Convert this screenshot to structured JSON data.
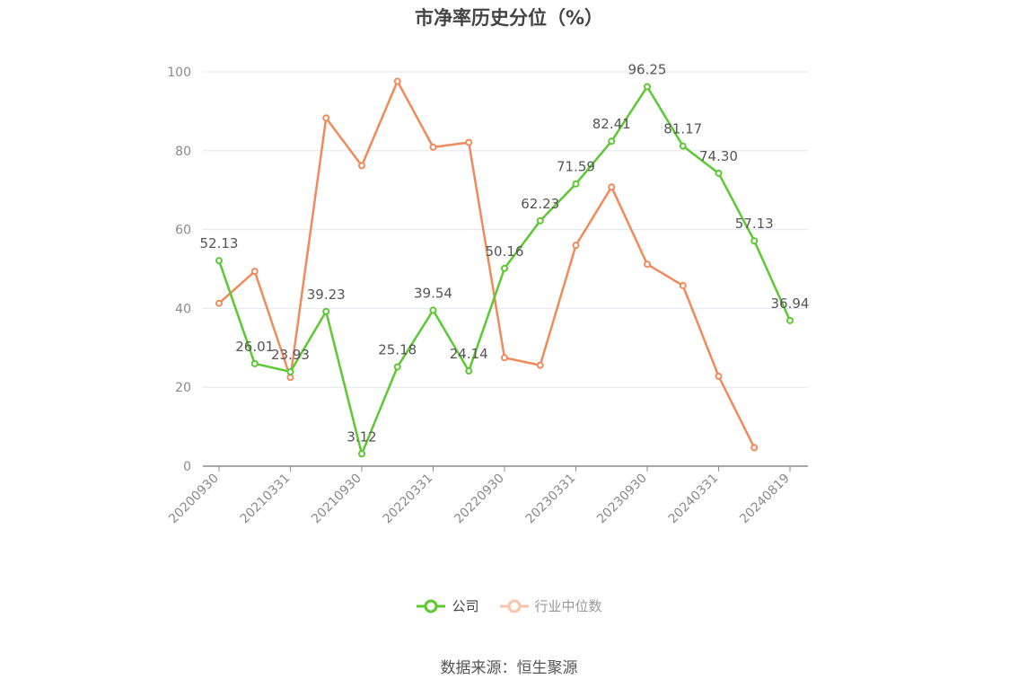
{
  "chart_data": {
    "type": "line",
    "title": "市净率历史分位（%）",
    "x": [
      "20200930",
      "20201231",
      "20210331",
      "20210630",
      "20210930",
      "20211231",
      "20220331",
      "20220630",
      "20220930",
      "20221231",
      "20230331",
      "20230630",
      "20230930",
      "20231231",
      "20240331",
      "20240630",
      "20240819"
    ],
    "x_tick_labels": [
      "20200930",
      "20210331",
      "20210930",
      "20220331",
      "20220930",
      "20230331",
      "20230930",
      "20240331",
      "20240819"
    ],
    "y_ticks": [
      0,
      20,
      40,
      60,
      80,
      100
    ],
    "ylim": [
      0,
      100
    ],
    "grid": "horizontal",
    "legend_position": "bottom",
    "series": [
      {
        "name": "公司",
        "color": "#5cc832",
        "show_labels": true,
        "values": [
          52.13,
          26.01,
          23.93,
          39.23,
          3.12,
          25.18,
          39.54,
          24.14,
          50.16,
          62.23,
          71.59,
          82.41,
          96.25,
          81.17,
          74.3,
          57.13,
          36.94
        ],
        "labels": [
          "52.13",
          "26.01",
          "23.93",
          "39.23",
          "3.12",
          "25.18",
          "39.54",
          "24.14",
          "50.16",
          "62.23",
          "71.59",
          "82.41",
          "96.25",
          "81.17",
          "74.30",
          "57.13",
          "36.94"
        ]
      },
      {
        "name": "行业中位数",
        "color": "#f08a5a",
        "show_labels": false,
        "values": [
          41.3,
          49.4,
          22.5,
          88.3,
          76.2,
          97.6,
          80.9,
          82.1,
          27.5,
          25.6,
          56.0,
          70.8,
          51.2,
          45.8,
          22.8,
          4.7,
          null
        ]
      }
    ]
  },
  "source": "数据来源：恒生聚源"
}
